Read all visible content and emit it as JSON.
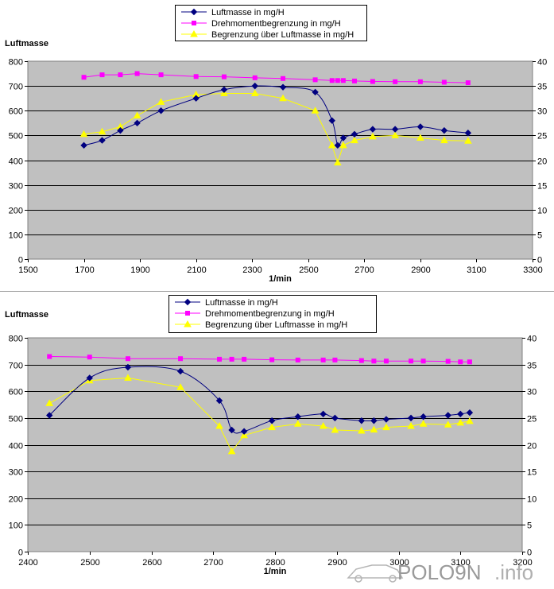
{
  "watermark": {
    "brand": "POLO9N",
    "suffix": ".info"
  },
  "chart_data": [
    {
      "type": "line",
      "ylabel": "Luftmasse",
      "xlabel": "1/min",
      "xlim": [
        1500,
        3300
      ],
      "xticks": [
        1500,
        1700,
        1900,
        2100,
        2300,
        2500,
        2700,
        2900,
        3100,
        3300
      ],
      "ylim": [
        0,
        800
      ],
      "yticks": [
        0,
        100,
        200,
        300,
        400,
        500,
        600,
        700,
        800
      ],
      "y2lim": [
        0,
        40
      ],
      "y2ticks": [
        0,
        5,
        10,
        15,
        20,
        25,
        30,
        35,
        40
      ],
      "grid": true,
      "legend_position": "top-center",
      "series": [
        {
          "name": "Luftmasse in mg/H",
          "color": "#000080",
          "marker": "diamond",
          "smooth": true,
          "x": [
            1700,
            1765,
            1830,
            1890,
            1975,
            2100,
            2200,
            2310,
            2410,
            2525,
            2585,
            2605,
            2625,
            2665,
            2730,
            2810,
            2900,
            2985,
            3070
          ],
          "y": [
            460,
            480,
            520,
            550,
            600,
            650,
            685,
            700,
            695,
            675,
            560,
            460,
            490,
            505,
            525,
            525,
            535,
            520,
            510
          ]
        },
        {
          "name": "Drehmomentbegrenzung in mg/H",
          "color": "#ff00ff",
          "marker": "square",
          "x": [
            1700,
            1765,
            1830,
            1890,
            1975,
            2100,
            2200,
            2310,
            2410,
            2525,
            2585,
            2605,
            2625,
            2665,
            2730,
            2810,
            2900,
            2985,
            3070
          ],
          "y": [
            735,
            745,
            745,
            750,
            745,
            738,
            737,
            733,
            730,
            725,
            722,
            722,
            722,
            720,
            718,
            717,
            717,
            715,
            713
          ]
        },
        {
          "name": "Begrenzung über Luftmasse in mg/H",
          "color": "#ffff00",
          "marker": "triangle",
          "x": [
            1700,
            1765,
            1830,
            1890,
            1975,
            2100,
            2200,
            2310,
            2410,
            2525,
            2585,
            2605,
            2625,
            2665,
            2730,
            2810,
            2900,
            2985,
            3070
          ],
          "y": [
            505,
            515,
            535,
            580,
            635,
            665,
            670,
            670,
            650,
            600,
            460,
            390,
            460,
            480,
            495,
            500,
            490,
            480,
            478
          ]
        }
      ]
    },
    {
      "type": "line",
      "ylabel": "Luftmasse",
      "xlabel": "1/min",
      "xlim": [
        2400,
        3200
      ],
      "xticks": [
        2400,
        2500,
        2600,
        2700,
        2800,
        2900,
        3000,
        3100,
        3200
      ],
      "ylim": [
        0,
        800
      ],
      "yticks": [
        0,
        100,
        200,
        300,
        400,
        500,
        600,
        700,
        800
      ],
      "y2lim": [
        0,
        40
      ],
      "y2ticks": [
        0,
        5,
        10,
        15,
        20,
        25,
        30,
        35,
        40
      ],
      "grid": true,
      "legend_position": "top-center",
      "series": [
        {
          "name": "Luftmasse in mg/H",
          "color": "#000080",
          "marker": "diamond",
          "smooth": true,
          "x": [
            2435,
            2500,
            2562,
            2647,
            2710,
            2730,
            2750,
            2795,
            2837,
            2878,
            2897,
            2940,
            2960,
            2980,
            3020,
            3040,
            3080,
            3100,
            3115
          ],
          "y": [
            510,
            650,
            690,
            675,
            565,
            455,
            450,
            490,
            505,
            515,
            500,
            490,
            490,
            495,
            500,
            505,
            510,
            515,
            520
          ]
        },
        {
          "name": "Drehmomentbegrenzung in mg/H",
          "color": "#ff00ff",
          "marker": "square",
          "x": [
            2435,
            2500,
            2562,
            2647,
            2710,
            2730,
            2750,
            2795,
            2837,
            2878,
            2897,
            2940,
            2960,
            2980,
            3020,
            3040,
            3080,
            3100,
            3115
          ],
          "y": [
            730,
            728,
            722,
            722,
            720,
            720,
            720,
            718,
            717,
            717,
            717,
            715,
            713,
            713,
            713,
            713,
            712,
            710,
            710
          ]
        },
        {
          "name": "Begrenzung über Luftmasse in mg/H",
          "color": "#ffff00",
          "marker": "triangle",
          "x": [
            2435,
            2500,
            2562,
            2647,
            2710,
            2730,
            2750,
            2795,
            2837,
            2878,
            2897,
            2940,
            2960,
            2980,
            3020,
            3040,
            3080,
            3100,
            3115
          ],
          "y": [
            555,
            640,
            650,
            615,
            470,
            375,
            435,
            465,
            478,
            470,
            455,
            452,
            456,
            465,
            470,
            478,
            475,
            482,
            488
          ]
        }
      ]
    }
  ]
}
